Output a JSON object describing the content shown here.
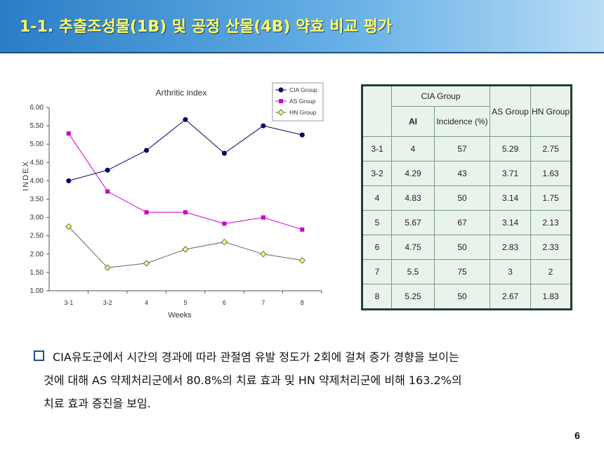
{
  "header": {
    "title": "1-1. 추출조성물(1B) 및 공정 산물(4B) 약효 비교 평가"
  },
  "chart_data": {
    "type": "line",
    "title": "Arthritic index",
    "xlabel": "Weeks",
    "ylabel": "INDEX",
    "categories": [
      "3-1",
      "3-2",
      "4",
      "5",
      "6",
      "7",
      "8"
    ],
    "ylim": [
      1.0,
      6.0
    ],
    "yticks": [
      "1.00",
      "1.50",
      "2.00",
      "2.50",
      "3.00",
      "3.50",
      "4.00",
      "4.50",
      "5.00",
      "5.50",
      "6.00"
    ],
    "grid": false,
    "legend_position": "top-right",
    "series": [
      {
        "name": "CIA Group",
        "color": "#000066",
        "marker": "circle",
        "values": [
          4.0,
          4.29,
          4.83,
          5.67,
          4.75,
          5.5,
          5.25
        ]
      },
      {
        "name": "AS Group",
        "color": "#cc00cc",
        "marker": "square",
        "values": [
          5.29,
          3.71,
          3.14,
          3.14,
          2.83,
          3.0,
          2.67
        ]
      },
      {
        "name": "HN Group",
        "color": "#666666",
        "marker": "diamond",
        "fill": "#ffff66",
        "values": [
          2.75,
          1.63,
          1.75,
          2.13,
          2.33,
          2.0,
          1.83
        ]
      }
    ]
  },
  "table": {
    "header": {
      "cia_group": "CIA Group",
      "ai": "AI",
      "incidence": "Incidence (%)",
      "as_group": "AS Group",
      "hn_group": "HN Group"
    },
    "rows": [
      {
        "week": "3-1",
        "ai": "4",
        "incidence": "57",
        "as": "5.29",
        "hn": "2.75"
      },
      {
        "week": "3-2",
        "ai": "4.29",
        "incidence": "43",
        "as": "3.71",
        "hn": "1.63"
      },
      {
        "week": "4",
        "ai": "4.83",
        "incidence": "50",
        "as": "3.14",
        "hn": "1.75"
      },
      {
        "week": "5",
        "ai": "5.67",
        "incidence": "67",
        "as": "3.14",
        "hn": "2.13"
      },
      {
        "week": "6",
        "ai": "4.75",
        "incidence": "50",
        "as": "2.83",
        "hn": "2.33"
      },
      {
        "week": "7",
        "ai": "5.5",
        "incidence": "75",
        "as": "3",
        "hn": "2"
      },
      {
        "week": "8",
        "ai": "5.25",
        "incidence": "50",
        "as": "2.67",
        "hn": "1.83"
      }
    ]
  },
  "summary": {
    "line1": "CIA유도군에서 시간의 경과에 따라 관절염 유발 정도가 2회에 걸쳐 증가 경향을 보이는",
    "line2": "것에 대해   AS 약제처리군에서 80.8%의 치료 효과 및 HN 약제처리군에 비해 163.2%의",
    "line3": "치료 효과 증진을 보임."
  },
  "page_number": "6"
}
